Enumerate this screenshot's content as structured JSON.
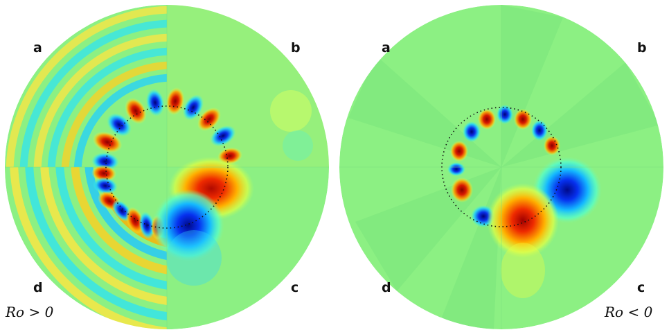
{
  "panels": [
    {
      "labels": {
        "a": "a",
        "b": "b",
        "c": "c",
        "d": "d"
      },
      "regime": "Ro > 0"
    },
    {
      "labels": {
        "a": "a",
        "b": "b",
        "c": "c",
        "d": "d"
      },
      "regime": "Ro < 0"
    }
  ],
  "colors": {
    "background": "#8cf083",
    "red": "#c41200",
    "orange": "#ff6a00",
    "yellow": "#fff200",
    "cyan": "#29e0ff",
    "blue": "#0a1fd8",
    "dark_blue": "#000a8a"
  }
}
